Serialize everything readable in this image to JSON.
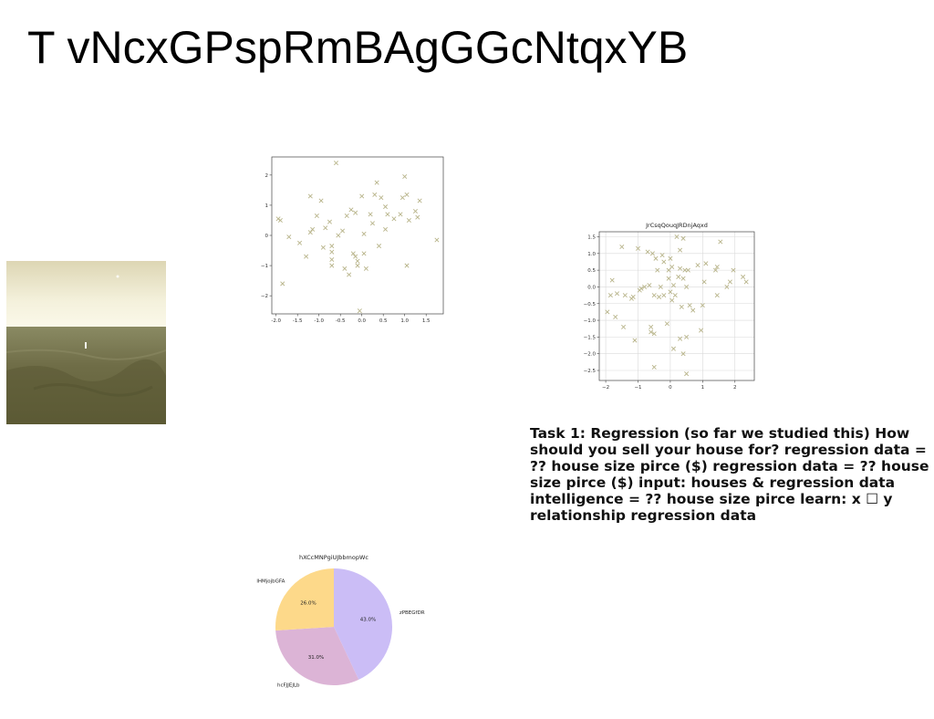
{
  "slide": {
    "title": "T vNcxGPspRmBAgGGcNtqxYB",
    "body_text": "Task 1: Regression (so far we studied this) How should you sell your house for? regression data = ?? house size pirce ($) regression data = ?? house size pirce ($) input: houses & regression data intelligence = ?? house size pirce learn: x ☐ y relationship regression data"
  },
  "colors": {
    "marker": "#b8b48a",
    "pie_purple": "#cbbdf6",
    "pie_pink": "#dcb4d6",
    "pie_yellow": "#fdd98a"
  },
  "chart_data": [
    {
      "type": "scatter",
      "title": "",
      "xlabel": "",
      "ylabel": "",
      "xlim": [
        -2.1,
        1.9
      ],
      "ylim": [
        -2.6,
        2.6
      ],
      "xticks": [
        "-2.0",
        "-1.5",
        "-1.0",
        "-0.5",
        "0.0",
        "0.5",
        "1.0",
        "1.5"
      ],
      "xtick_values": [
        -2.0,
        -1.5,
        -1.0,
        -0.5,
        0.0,
        0.5,
        1.0,
        1.5
      ],
      "yticks": [
        "2",
        "1",
        "0",
        "−1",
        "−2"
      ],
      "ytick_values": [
        2,
        1,
        0,
        -1,
        -2
      ],
      "grid": false,
      "marker": "x",
      "points": [
        [
          -1.95,
          0.55
        ],
        [
          -1.9,
          0.5
        ],
        [
          -1.85,
          -1.6
        ],
        [
          -1.7,
          -0.05
        ],
        [
          -1.45,
          -0.25
        ],
        [
          -1.3,
          -0.7
        ],
        [
          -1.2,
          1.3
        ],
        [
          -1.2,
          0.1
        ],
        [
          -1.15,
          0.2
        ],
        [
          -1.05,
          0.65
        ],
        [
          -0.95,
          1.15
        ],
        [
          -0.9,
          -0.4
        ],
        [
          -0.85,
          0.25
        ],
        [
          -0.75,
          0.45
        ],
        [
          -0.7,
          -0.35
        ],
        [
          -0.7,
          -0.55
        ],
        [
          -0.7,
          -0.8
        ],
        [
          -0.7,
          -1.0
        ],
        [
          -0.6,
          2.4
        ],
        [
          -0.55,
          0.0
        ],
        [
          -0.45,
          0.15
        ],
        [
          -0.4,
          -1.1
        ],
        [
          -0.35,
          0.65
        ],
        [
          -0.3,
          -1.3
        ],
        [
          -0.25,
          0.85
        ],
        [
          -0.2,
          -0.6
        ],
        [
          -0.15,
          -0.7
        ],
        [
          -0.15,
          0.75
        ],
        [
          -0.1,
          -0.85
        ],
        [
          -0.1,
          -1.0
        ],
        [
          -0.05,
          -2.5
        ],
        [
          0.0,
          1.3
        ],
        [
          0.05,
          -0.6
        ],
        [
          0.05,
          0.05
        ],
        [
          0.1,
          -1.1
        ],
        [
          0.2,
          0.7
        ],
        [
          0.25,
          0.4
        ],
        [
          0.3,
          1.35
        ],
        [
          0.35,
          1.75
        ],
        [
          0.4,
          -0.35
        ],
        [
          0.45,
          1.25
        ],
        [
          0.55,
          0.2
        ],
        [
          0.55,
          0.95
        ],
        [
          0.6,
          0.7
        ],
        [
          0.75,
          0.55
        ],
        [
          0.9,
          0.7
        ],
        [
          0.95,
          1.25
        ],
        [
          1.0,
          1.95
        ],
        [
          1.05,
          -1.0
        ],
        [
          1.05,
          1.35
        ],
        [
          1.1,
          0.5
        ],
        [
          1.25,
          0.8
        ],
        [
          1.3,
          0.6
        ],
        [
          1.35,
          1.15
        ],
        [
          1.75,
          -0.15
        ]
      ]
    },
    {
      "type": "scatter",
      "title": "JrCsqQouqJRDnjAqxd",
      "xlabel": "",
      "ylabel": "",
      "xlim": [
        -2.2,
        2.6
      ],
      "ylim": [
        -2.8,
        1.65
      ],
      "xticks": [
        "−2",
        "−1",
        "0",
        "1",
        "2"
      ],
      "xtick_values": [
        -2,
        -1,
        0,
        1,
        2
      ],
      "yticks": [
        "1.5",
        "1.0",
        "0.5",
        "0.0",
        "−0.5",
        "−1.0",
        "−1.5",
        "−2.0",
        "−2.5"
      ],
      "ytick_values": [
        1.5,
        1.0,
        0.5,
        0.0,
        -0.5,
        -1.0,
        -1.5,
        -2.0,
        -2.5
      ],
      "grid": true,
      "marker": "x",
      "points": [
        [
          -1.95,
          -0.75
        ],
        [
          -1.85,
          -0.25
        ],
        [
          -1.8,
          0.2
        ],
        [
          -1.7,
          -0.9
        ],
        [
          -1.65,
          -0.2
        ],
        [
          -1.5,
          1.2
        ],
        [
          -1.45,
          -1.2
        ],
        [
          -1.4,
          -0.25
        ],
        [
          -1.2,
          -0.35
        ],
        [
          -1.15,
          -0.3
        ],
        [
          -1.1,
          -1.6
        ],
        [
          -1.0,
          1.15
        ],
        [
          -0.95,
          -0.1
        ],
        [
          -0.9,
          -0.05
        ],
        [
          -0.8,
          0.0
        ],
        [
          -0.7,
          1.05
        ],
        [
          -0.65,
          0.05
        ],
        [
          -0.6,
          -1.35
        ],
        [
          -0.6,
          -1.2
        ],
        [
          -0.55,
          1.0
        ],
        [
          -0.5,
          -0.25
        ],
        [
          -0.5,
          -1.4
        ],
        [
          -0.5,
          -2.4
        ],
        [
          -0.45,
          0.85
        ],
        [
          -0.4,
          0.5
        ],
        [
          -0.35,
          -0.3
        ],
        [
          -0.3,
          0.0
        ],
        [
          -0.25,
          0.95
        ],
        [
          -0.2,
          -0.25
        ],
        [
          -0.2,
          0.75
        ],
        [
          -0.1,
          -1.1
        ],
        [
          -0.05,
          0.5
        ],
        [
          -0.05,
          0.25
        ],
        [
          0.0,
          0.85
        ],
        [
          0.0,
          -0.15
        ],
        [
          0.05,
          -0.4
        ],
        [
          0.05,
          0.6
        ],
        [
          0.1,
          0.05
        ],
        [
          0.1,
          -1.85
        ],
        [
          0.15,
          -0.25
        ],
        [
          0.2,
          1.5
        ],
        [
          0.25,
          0.3
        ],
        [
          0.3,
          1.1
        ],
        [
          0.3,
          -1.55
        ],
        [
          0.3,
          0.55
        ],
        [
          0.35,
          -0.6
        ],
        [
          0.4,
          0.25
        ],
        [
          0.4,
          1.45
        ],
        [
          0.4,
          -2.0
        ],
        [
          0.45,
          0.5
        ],
        [
          0.5,
          0.0
        ],
        [
          0.5,
          -1.5
        ],
        [
          0.5,
          -2.6
        ],
        [
          0.55,
          0.5
        ],
        [
          0.6,
          -0.55
        ],
        [
          0.7,
          -0.7
        ],
        [
          0.85,
          0.65
        ],
        [
          0.95,
          -1.3
        ],
        [
          1.0,
          -0.55
        ],
        [
          1.05,
          0.15
        ],
        [
          1.1,
          0.7
        ],
        [
          1.4,
          0.5
        ],
        [
          1.45,
          0.6
        ],
        [
          1.45,
          -0.25
        ],
        [
          1.55,
          1.35
        ],
        [
          1.75,
          0.0
        ],
        [
          1.85,
          0.15
        ],
        [
          1.95,
          0.5
        ],
        [
          2.25,
          0.3
        ],
        [
          2.35,
          0.15
        ]
      ]
    },
    {
      "type": "pie",
      "title": "hXCcMNPgiUJbbmopWc",
      "labels": [
        "zPBEGfDR",
        "hcFJJEJLb",
        "lHMjojbGFA"
      ],
      "values": [
        43.0,
        31.0,
        26.0
      ],
      "percent_labels": [
        "43.0%",
        "31.0%",
        "26.0%"
      ],
      "colors": [
        "#cbbdf6",
        "#dcb4d6",
        "#fdd98a"
      ],
      "startangle_deg": 90,
      "direction": "clockwise"
    }
  ]
}
